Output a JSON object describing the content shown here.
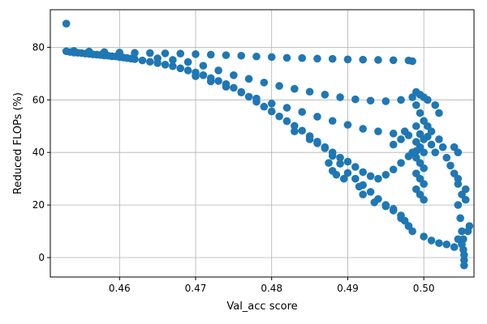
{
  "chart_data": {
    "type": "scatter",
    "title": "",
    "xlabel": "Val_acc score",
    "ylabel": "Reduced FLOPs (%)",
    "xlim": [
      0.4509,
      0.5066
    ],
    "ylim": [
      -7.4,
      94.3
    ],
    "xticks": [
      0.46,
      0.47,
      0.48,
      0.49,
      0.5
    ],
    "xtick_labels": [
      "0.46",
      "0.47",
      "0.48",
      "0.49",
      "0.50"
    ],
    "yticks": [
      0,
      20,
      40,
      60,
      80
    ],
    "ytick_labels": [
      "0",
      "20",
      "40",
      "60",
      "80"
    ],
    "grid": true,
    "legend": null,
    "marker_color": "#1f77b4",
    "series": [
      {
        "points": [
          [
            0.453,
            89.0
          ],
          [
            0.453,
            78.5
          ],
          [
            0.4535,
            78.2
          ],
          [
            0.454,
            78.0
          ],
          [
            0.4545,
            77.9
          ],
          [
            0.455,
            77.8
          ],
          [
            0.4555,
            77.6
          ],
          [
            0.456,
            77.5
          ],
          [
            0.4565,
            77.3
          ],
          [
            0.457,
            77.2
          ],
          [
            0.4575,
            77.1
          ],
          [
            0.458,
            76.9
          ],
          [
            0.4585,
            76.8
          ],
          [
            0.459,
            76.6
          ],
          [
            0.4595,
            76.5
          ],
          [
            0.46,
            76.3
          ],
          [
            0.4605,
            76.1
          ],
          [
            0.461,
            75.9
          ],
          [
            0.4615,
            75.7
          ],
          [
            0.462,
            75.5
          ],
          [
            0.463,
            75.0
          ],
          [
            0.464,
            74.5
          ],
          [
            0.465,
            74.0
          ],
          [
            0.466,
            73.4
          ],
          [
            0.467,
            72.8
          ],
          [
            0.468,
            72.0
          ],
          [
            0.469,
            71.2
          ],
          [
            0.47,
            70.4
          ],
          [
            0.471,
            69.4
          ],
          [
            0.472,
            68.3
          ],
          [
            0.473,
            67.2
          ],
          [
            0.474,
            66.0
          ],
          [
            0.475,
            64.6
          ],
          [
            0.476,
            63.0
          ],
          [
            0.477,
            61.2
          ],
          [
            0.478,
            59.3
          ],
          [
            0.479,
            57.4
          ],
          [
            0.48,
            55.6
          ],
          [
            0.481,
            53.7
          ],
          [
            0.482,
            51.9
          ],
          [
            0.483,
            50.1
          ],
          [
            0.484,
            48.3
          ],
          [
            0.485,
            46.2
          ],
          [
            0.486,
            44.1
          ],
          [
            0.487,
            41.6
          ],
          [
            0.488,
            38.7
          ],
          [
            0.489,
            35.7
          ],
          [
            0.49,
            32.2
          ],
          [
            0.491,
            30.0
          ],
          [
            0.492,
            27.6
          ],
          [
            0.493,
            25.0
          ],
          [
            0.494,
            22.3
          ],
          [
            0.495,
            20.0
          ],
          [
            0.496,
            17.9
          ],
          [
            0.497,
            15.0
          ],
          [
            0.498,
            12.0
          ],
          [
            0.454,
            78.6
          ],
          [
            0.456,
            78.4
          ],
          [
            0.458,
            78.2
          ],
          [
            0.46,
            78.0
          ],
          [
            0.462,
            77.9
          ],
          [
            0.464,
            77.8
          ],
          [
            0.466,
            77.7
          ],
          [
            0.468,
            77.6
          ],
          [
            0.47,
            77.4
          ],
          [
            0.472,
            77.2
          ],
          [
            0.474,
            77.0
          ],
          [
            0.476,
            76.8
          ],
          [
            0.478,
            76.5
          ],
          [
            0.48,
            76.3
          ],
          [
            0.482,
            76.0
          ],
          [
            0.484,
            75.9
          ],
          [
            0.486,
            75.7
          ],
          [
            0.488,
            75.6
          ],
          [
            0.49,
            75.4
          ],
          [
            0.492,
            75.3
          ],
          [
            0.494,
            75.2
          ],
          [
            0.496,
            75.1
          ],
          [
            0.498,
            75.0
          ],
          [
            0.4985,
            74.7
          ],
          [
            0.465,
            75.8
          ],
          [
            0.467,
            75.2
          ],
          [
            0.469,
            74.4
          ],
          [
            0.471,
            73.0
          ],
          [
            0.473,
            71.2
          ],
          [
            0.475,
            69.4
          ],
          [
            0.477,
            68.0
          ],
          [
            0.479,
            66.6
          ],
          [
            0.481,
            65.3
          ],
          [
            0.483,
            64.2
          ],
          [
            0.485,
            63.1
          ],
          [
            0.487,
            62.0
          ],
          [
            0.489,
            61.0
          ],
          [
            0.491,
            60.2
          ],
          [
            0.493,
            59.7
          ],
          [
            0.495,
            59.5
          ],
          [
            0.497,
            60.0
          ],
          [
            0.4985,
            61.0
          ],
          [
            0.47,
            69.0
          ],
          [
            0.472,
            67.0
          ],
          [
            0.474,
            65.0
          ],
          [
            0.476,
            62.8
          ],
          [
            0.478,
            60.5
          ],
          [
            0.48,
            58.6
          ],
          [
            0.482,
            57.0
          ],
          [
            0.484,
            55.4
          ],
          [
            0.486,
            53.6
          ],
          [
            0.488,
            52.0
          ],
          [
            0.49,
            50.5
          ],
          [
            0.492,
            49.0
          ],
          [
            0.494,
            48.0
          ],
          [
            0.496,
            47.2
          ],
          [
            0.498,
            46.5
          ],
          [
            0.483,
            48.0
          ],
          [
            0.485,
            45.0
          ],
          [
            0.486,
            43.5
          ],
          [
            0.487,
            42.0
          ],
          [
            0.488,
            40.0
          ],
          [
            0.489,
            38.0
          ],
          [
            0.49,
            36.5
          ],
          [
            0.491,
            34.5
          ],
          [
            0.492,
            32.5
          ],
          [
            0.493,
            31.0
          ],
          [
            0.494,
            30.0
          ],
          [
            0.495,
            31.5
          ],
          [
            0.496,
            33.5
          ],
          [
            0.497,
            36.0
          ],
          [
            0.498,
            38.5
          ],
          [
            0.499,
            40.5
          ],
          [
            0.4875,
            36.0
          ],
          [
            0.488,
            33.0
          ],
          [
            0.4885,
            31.5
          ],
          [
            0.4895,
            30.0
          ],
          [
            0.4915,
            27.0
          ],
          [
            0.492,
            24.0
          ],
          [
            0.4935,
            21.0
          ],
          [
            0.495,
            19.5
          ],
          [
            0.496,
            18.5
          ],
          [
            0.497,
            16.0
          ],
          [
            0.4975,
            14.0
          ],
          [
            0.498,
            12.0
          ],
          [
            0.4985,
            10.0
          ],
          [
            0.499,
            63.0
          ],
          [
            0.4995,
            62.0
          ],
          [
            0.5,
            61.0
          ],
          [
            0.499,
            58.0
          ],
          [
            0.4995,
            55.0
          ],
          [
            0.5,
            52.0
          ],
          [
            0.5005,
            50.0
          ],
          [
            0.501,
            48.0
          ],
          [
            0.499,
            50.0
          ],
          [
            0.4995,
            47.0
          ],
          [
            0.5,
            45.0
          ],
          [
            0.499,
            44.0
          ],
          [
            0.4995,
            42.0
          ],
          [
            0.5,
            40.0
          ],
          [
            0.499,
            38.0
          ],
          [
            0.4995,
            36.0
          ],
          [
            0.5,
            34.0
          ],
          [
            0.499,
            32.0
          ],
          [
            0.4995,
            30.0
          ],
          [
            0.5,
            28.0
          ],
          [
            0.499,
            26.0
          ],
          [
            0.4995,
            24.0
          ],
          [
            0.5,
            22.0
          ],
          [
            0.5005,
            46.0
          ],
          [
            0.501,
            43.0
          ],
          [
            0.5015,
            40.0
          ],
          [
            0.502,
            45.0
          ],
          [
            0.5025,
            42.0
          ],
          [
            0.503,
            38.0
          ],
          [
            0.5035,
            35.0
          ],
          [
            0.504,
            32.0
          ],
          [
            0.5045,
            28.0
          ],
          [
            0.505,
            24.0
          ],
          [
            0.5055,
            26.0
          ],
          [
            0.5055,
            22.0
          ],
          [
            0.5045,
            30.0
          ],
          [
            0.504,
            42.0
          ],
          [
            0.5045,
            40.0
          ],
          [
            0.502,
            55.0
          ],
          [
            0.5015,
            58.0
          ],
          [
            0.5005,
            60.0
          ],
          [
            0.4985,
            40.0
          ],
          [
            0.497,
            45.0
          ],
          [
            0.496,
            43.0
          ],
          [
            0.4975,
            48.0
          ],
          [
            0.5045,
            20.0
          ],
          [
            0.5048,
            15.0
          ],
          [
            0.505,
            10.0
          ],
          [
            0.5052,
            7.0
          ],
          [
            0.505,
            5.0
          ],
          [
            0.5052,
            3.0
          ],
          [
            0.5053,
            1.0
          ],
          [
            0.5053,
            -1.0
          ],
          [
            0.5053,
            -3.0
          ],
          [
            0.5045,
            7.0
          ],
          [
            0.504,
            4.0
          ],
          [
            0.503,
            5.0
          ],
          [
            0.502,
            5.5
          ],
          [
            0.501,
            6.5
          ],
          [
            0.5,
            8.0
          ],
          [
            0.506,
            12.0
          ],
          [
            0.5058,
            10.0
          ]
        ]
      }
    ]
  }
}
